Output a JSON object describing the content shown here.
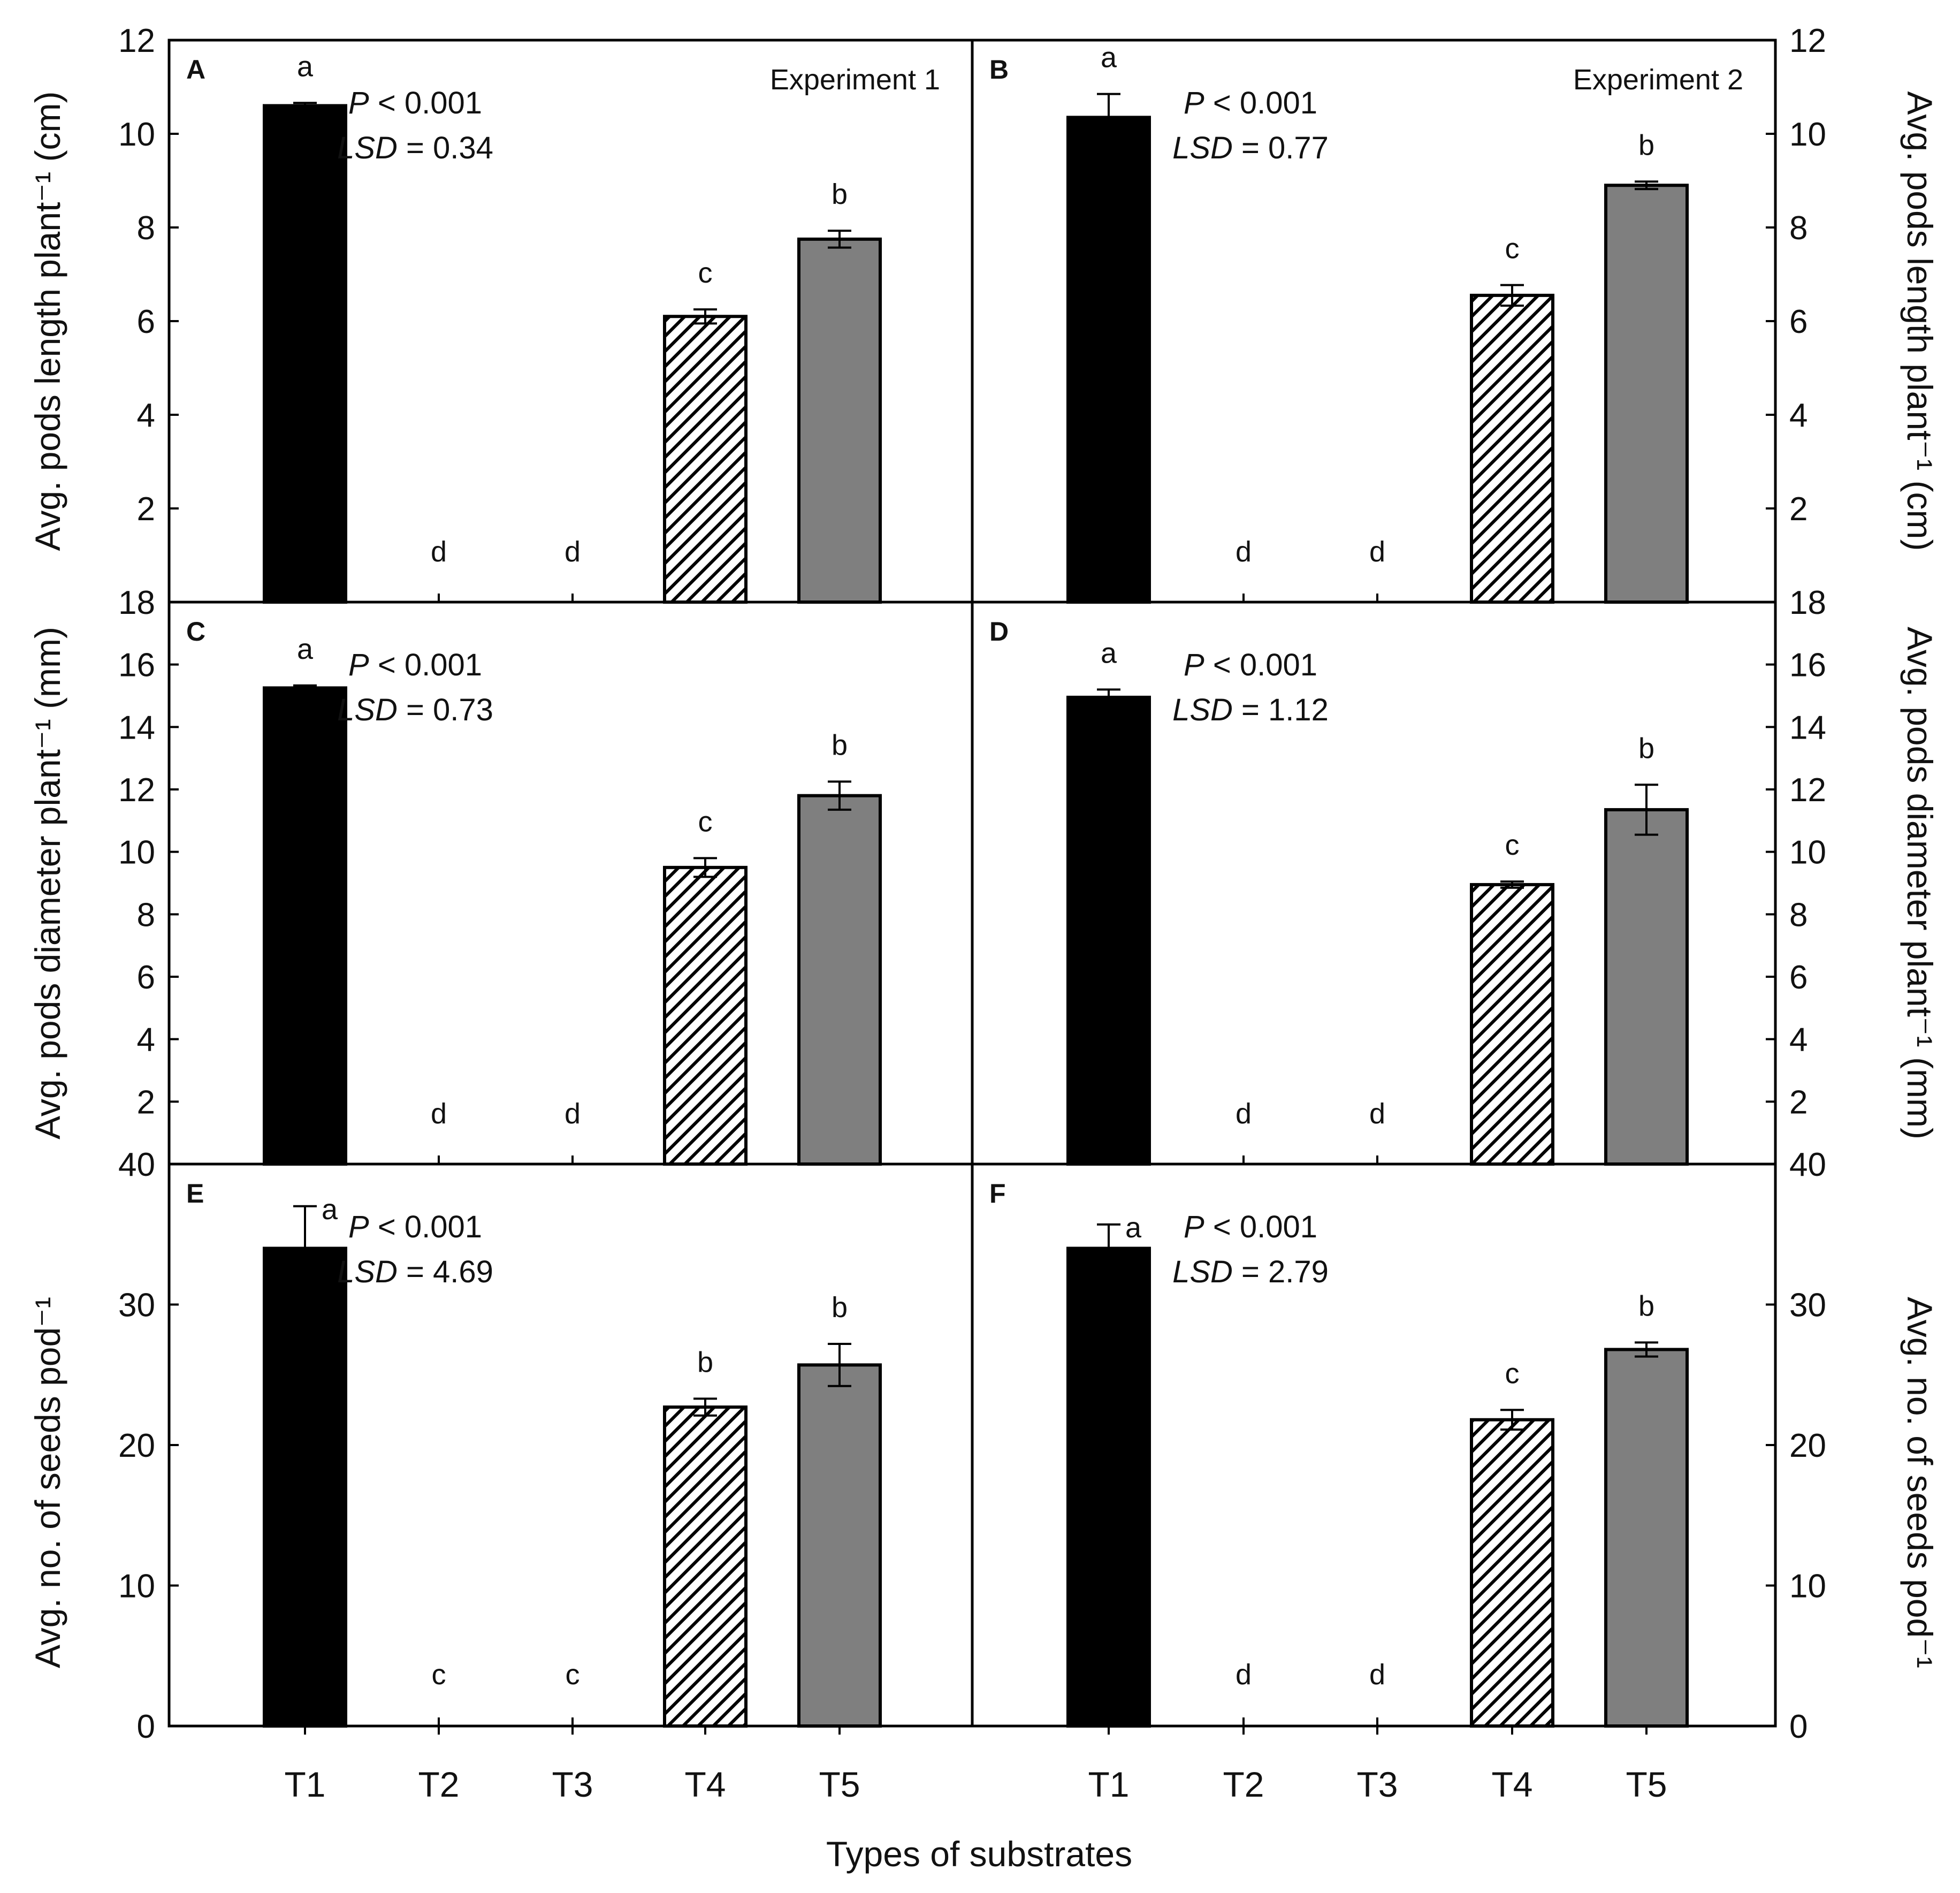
{
  "figure": {
    "x_title": "Types of substrates",
    "categories": [
      "T1",
      "T2",
      "T3",
      "T4",
      "T5"
    ],
    "colors": {
      "T1": "#000000",
      "T4": "hatched",
      "T5": "#7f7f7f",
      "axis": "#000000"
    }
  },
  "chart_data": [
    {
      "id": "A",
      "type": "bar",
      "row": 0,
      "col": 0,
      "panel_label": "A",
      "experiment_label": "Experiment 1",
      "ylabel": "Avg. pods length plant⁻¹ (cm)",
      "ylim": [
        0,
        12
      ],
      "yticks": [
        2,
        4,
        6,
        8,
        10,
        12
      ],
      "categories": [
        "T1",
        "T2",
        "T3",
        "T4",
        "T5"
      ],
      "values": [
        10.6,
        0,
        0,
        6.1,
        7.75
      ],
      "errors": [
        0.06,
        0,
        0,
        0.15,
        0.18
      ],
      "letters": [
        "a",
        "d",
        "d",
        "c",
        "b"
      ],
      "p_text": "P < 0.001",
      "lsd_text": "LSD = 0.34"
    },
    {
      "id": "B",
      "type": "bar",
      "row": 0,
      "col": 1,
      "panel_label": "B",
      "experiment_label": "Experiment 2",
      "ylabel": "Avg. pods length plant⁻¹ (cm)",
      "ylim": [
        0,
        12
      ],
      "yticks": [
        2,
        4,
        6,
        8,
        10,
        12
      ],
      "categories": [
        "T1",
        "T2",
        "T3",
        "T4",
        "T5"
      ],
      "values": [
        10.35,
        0,
        0,
        6.55,
        8.9
      ],
      "errors": [
        0.5,
        0,
        0,
        0.22,
        0.08
      ],
      "letters": [
        "a",
        "d",
        "d",
        "c",
        "b"
      ],
      "p_text": "P < 0.001",
      "lsd_text": "LSD = 0.77"
    },
    {
      "id": "C",
      "type": "bar",
      "row": 1,
      "col": 0,
      "panel_label": "C",
      "ylabel": "Avg. pods diameter plant⁻¹ (mm)",
      "ylim": [
        0,
        18
      ],
      "yticks": [
        2,
        4,
        6,
        8,
        10,
        12,
        14,
        16,
        18
      ],
      "categories": [
        "T1",
        "T2",
        "T3",
        "T4",
        "T5"
      ],
      "values": [
        15.25,
        0,
        0,
        9.5,
        11.8
      ],
      "errors": [
        0.08,
        0,
        0,
        0.3,
        0.45
      ],
      "letters": [
        "a",
        "d",
        "d",
        "c",
        "b"
      ],
      "p_text": "P < 0.001",
      "lsd_text": "LSD = 0.73"
    },
    {
      "id": "D",
      "type": "bar",
      "row": 1,
      "col": 1,
      "panel_label": "D",
      "ylabel": "Avg. pods diameter plant⁻¹ (mm)",
      "ylim": [
        0,
        18
      ],
      "yticks": [
        2,
        4,
        6,
        8,
        10,
        12,
        14,
        16,
        18
      ],
      "categories": [
        "T1",
        "T2",
        "T3",
        "T4",
        "T5"
      ],
      "values": [
        14.95,
        0,
        0,
        8.95,
        11.35
      ],
      "errors": [
        0.25,
        0,
        0,
        0.1,
        0.8
      ],
      "letters": [
        "a",
        "d",
        "d",
        "c",
        "b"
      ],
      "p_text": "P < 0.001",
      "lsd_text": "LSD = 1.12"
    },
    {
      "id": "E",
      "type": "bar",
      "row": 2,
      "col": 0,
      "panel_label": "E",
      "ylabel": "Avg. no. of seeds pod⁻¹",
      "ylim": [
        0,
        40
      ],
      "yticks": [
        0,
        10,
        20,
        30,
        40
      ],
      "categories": [
        "T1",
        "T2",
        "T3",
        "T4",
        "T5"
      ],
      "values": [
        34,
        0,
        0,
        22.7,
        25.7
      ],
      "errors": [
        3.0,
        0,
        0,
        0.6,
        1.5
      ],
      "letters": [
        "a",
        "c",
        "c",
        "b",
        "b"
      ],
      "p_text": "P < 0.001",
      "lsd_text": "LSD = 4.69"
    },
    {
      "id": "F",
      "type": "bar",
      "row": 2,
      "col": 1,
      "panel_label": "F",
      "ylabel": "Avg. no. of seeds pod⁻¹",
      "ylim": [
        0,
        40
      ],
      "yticks": [
        0,
        10,
        20,
        30,
        40
      ],
      "categories": [
        "T1",
        "T2",
        "T3",
        "T4",
        "T5"
      ],
      "values": [
        34,
        0,
        0,
        21.8,
        26.8
      ],
      "errors": [
        1.7,
        0,
        0,
        0.7,
        0.5
      ],
      "letters": [
        "a",
        "d",
        "d",
        "c",
        "b"
      ],
      "p_text": "P < 0.001",
      "lsd_text": "LSD = 2.79"
    }
  ]
}
